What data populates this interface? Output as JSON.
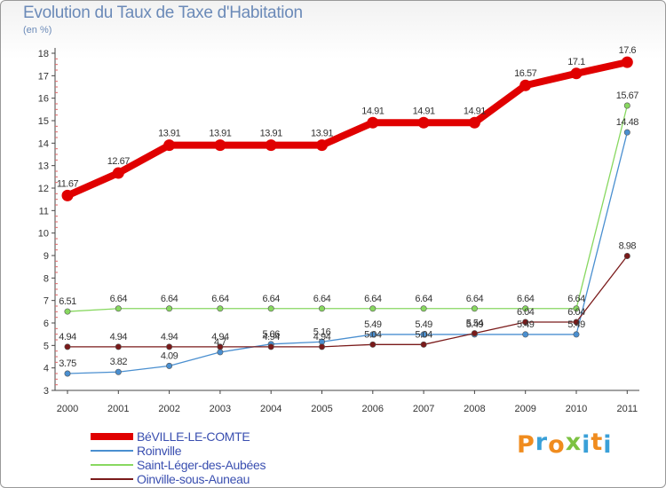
{
  "title": "Evolution du Taux de Taxe d'Habitation",
  "unit_label": "(en %)",
  "brand": {
    "text": "Proxiti",
    "letters": [
      "P",
      "r",
      "o",
      "x",
      "i",
      "t",
      "i"
    ],
    "colors": [
      "#f08c1e",
      "#3aa0d8",
      "#f08c1e",
      "#7cc242",
      "#3aa0d8",
      "#f08c1e",
      "#3aa0d8"
    ]
  },
  "chart_data": {
    "type": "line",
    "title": "Evolution du Taux de Taxe d'Habitation",
    "ylabel": "(en %)",
    "xlabel": "",
    "x": [
      "2000",
      "2001",
      "2002",
      "2003",
      "2004",
      "2005",
      "2006",
      "2007",
      "2008",
      "2009",
      "2010",
      "2011"
    ],
    "ylim": [
      3,
      18
    ],
    "yticks": [
      "3",
      "4",
      "5",
      "6",
      "7",
      "8",
      "9",
      "10",
      "11",
      "12",
      "13",
      "14",
      "15",
      "16",
      "17",
      "18"
    ],
    "grid": false,
    "series": [
      {
        "name": "BéVILLE-LE-COMTE",
        "color": "#e00000",
        "values": [
          11.67,
          12.67,
          13.91,
          13.91,
          13.91,
          13.91,
          14.91,
          14.91,
          14.91,
          16.57,
          17.1,
          17.6
        ],
        "labels": [
          "11.67",
          "12.67",
          "13.91",
          "13.91",
          "13.91",
          "13.91",
          "14.91",
          "14.91",
          "14.91",
          "16.57",
          "17.1",
          "17.6"
        ]
      },
      {
        "name": "Roinville",
        "color": "#4a8fd0",
        "values": [
          3.75,
          3.82,
          4.09,
          4.7,
          5.06,
          5.16,
          5.49,
          5.49,
          5.49,
          5.49,
          5.49,
          14.48
        ],
        "labels": [
          "3.75",
          "3.82",
          "4.09",
          "4.7",
          "5.06",
          "5.16",
          "5.49",
          "5.49",
          "5.49",
          "5.49",
          "5.49",
          "14.48"
        ]
      },
      {
        "name": "Saint-Léger-des-Aubées",
        "color": "#88d860",
        "values": [
          6.51,
          6.64,
          6.64,
          6.64,
          6.64,
          6.64,
          6.64,
          6.64,
          6.64,
          6.64,
          6.64,
          15.67
        ],
        "labels": [
          "6.51",
          "6.64",
          "6.64",
          "6.64",
          "6.64",
          "6.64",
          "6.64",
          "6.64",
          "6.64",
          "6.64",
          "6.64",
          "15.67"
        ]
      },
      {
        "name": "Oinville-sous-Auneau",
        "color": "#7a1a1a",
        "values": [
          4.94,
          4.94,
          4.94,
          4.94,
          4.94,
          4.94,
          5.04,
          5.04,
          5.54,
          6.04,
          6.04,
          8.98
        ],
        "labels": [
          "4.94",
          "4.94",
          "4.94",
          "4.94",
          "4.94",
          "4.94",
          "5.04",
          "5.04",
          "5.54",
          "6.04",
          "6.04",
          "8.98"
        ]
      }
    ]
  }
}
